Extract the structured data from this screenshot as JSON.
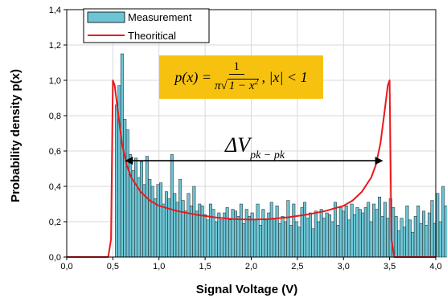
{
  "chart_data": {
    "type": "bar",
    "xlabel": "Signal Voltage (V)",
    "ylabel": "Probability density p(x)",
    "xlim": [
      0.0,
      4.0
    ],
    "ylim": [
      0.0,
      1.4
    ],
    "x_ticks": [
      "0,0",
      "0,5",
      "1,0",
      "1,5",
      "2,0",
      "2,5",
      "3,0",
      "3,5",
      "4,0"
    ],
    "y_ticks": [
      "0,0",
      "0,2",
      "0,4",
      "0,6",
      "0,8",
      "1,0",
      "1,2",
      "1,4"
    ],
    "legend_position": "top-left",
    "grid": true,
    "series": [
      {
        "name": "Measurement",
        "kind": "histogram",
        "color": "#6cc4d4",
        "bin_start": 0.525,
        "bin_width": 0.03,
        "values": [
          0.86,
          0.97,
          1.15,
          0.78,
          0.72,
          0.58,
          0.49,
          0.56,
          0.45,
          0.54,
          0.41,
          0.57,
          0.44,
          0.4,
          0.33,
          0.41,
          0.42,
          0.3,
          0.37,
          0.33,
          0.58,
          0.36,
          0.31,
          0.44,
          0.32,
          0.26,
          0.36,
          0.29,
          0.4,
          0.26,
          0.3,
          0.29,
          0.24,
          0.21,
          0.3,
          0.27,
          0.2,
          0.25,
          0.21,
          0.25,
          0.28,
          0.21,
          0.27,
          0.26,
          0.23,
          0.3,
          0.19,
          0.27,
          0.23,
          0.25,
          0.21,
          0.3,
          0.18,
          0.27,
          0.21,
          0.25,
          0.31,
          0.22,
          0.29,
          0.19,
          0.23,
          0.2,
          0.32,
          0.18,
          0.3,
          0.2,
          0.17,
          0.28,
          0.31,
          0.22,
          0.25,
          0.16,
          0.26,
          0.2,
          0.27,
          0.22,
          0.25,
          0.24,
          0.2,
          0.31,
          0.18,
          0.28,
          0.26,
          0.29,
          0.21,
          0.3,
          0.24,
          0.28,
          0.27,
          0.25,
          0.28,
          0.31,
          0.2,
          0.3,
          0.27,
          0.34,
          0.23,
          0.31,
          0.22,
          0.33,
          0.28,
          0.23,
          0.15,
          0.22,
          0.17,
          0.29,
          0.21,
          0.14,
          0.23,
          0.29,
          0.19,
          0.26,
          0.18,
          0.25,
          0.32,
          0.19,
          0.36,
          0.2,
          0.4,
          0.29,
          0.35,
          0.38,
          0.42,
          0.37,
          0.45,
          0.39,
          0.48,
          0.55,
          0.43,
          0.53,
          0.41,
          0.62,
          0.68,
          0.7,
          0.57,
          0.76,
          0.6,
          1.35,
          0.79,
          0.72
        ]
      },
      {
        "name": "Theoritical",
        "kind": "line",
        "color": "#e8191e",
        "x": [
          0.0,
          0.4,
          0.45,
          0.48,
          0.5,
          0.52,
          0.56,
          0.6,
          0.65,
          0.7,
          0.8,
          0.9,
          1.0,
          1.2,
          1.4,
          1.6,
          1.8,
          2.0,
          2.2,
          2.4,
          2.6,
          2.8,
          3.0,
          3.1,
          3.2,
          3.3,
          3.35,
          3.4,
          3.44,
          3.48,
          3.5,
          3.52,
          3.55,
          3.6,
          4.0
        ],
        "y": [
          0.0,
          0.0,
          0.0,
          0.1,
          1.0,
          0.97,
          0.8,
          0.64,
          0.52,
          0.45,
          0.37,
          0.32,
          0.29,
          0.26,
          0.24,
          0.225,
          0.215,
          0.212,
          0.215,
          0.225,
          0.24,
          0.26,
          0.29,
          0.32,
          0.37,
          0.45,
          0.52,
          0.64,
          0.8,
          0.97,
          1.0,
          0.1,
          0.0,
          0.0,
          0.0
        ]
      }
    ],
    "annotations": {
      "formula": {
        "lhs": "p(x) =",
        "numerator": "1",
        "pi": "π",
        "radicand": "1 − x",
        "exponent": "2",
        "condition": ", |x| < 1",
        "background": "#f6c20f"
      },
      "arrow": {
        "x_start": 0.63,
        "x_end": 3.43,
        "y": 0.545,
        "label_main": "ΔV",
        "label_sub": "pk − pk"
      }
    }
  }
}
